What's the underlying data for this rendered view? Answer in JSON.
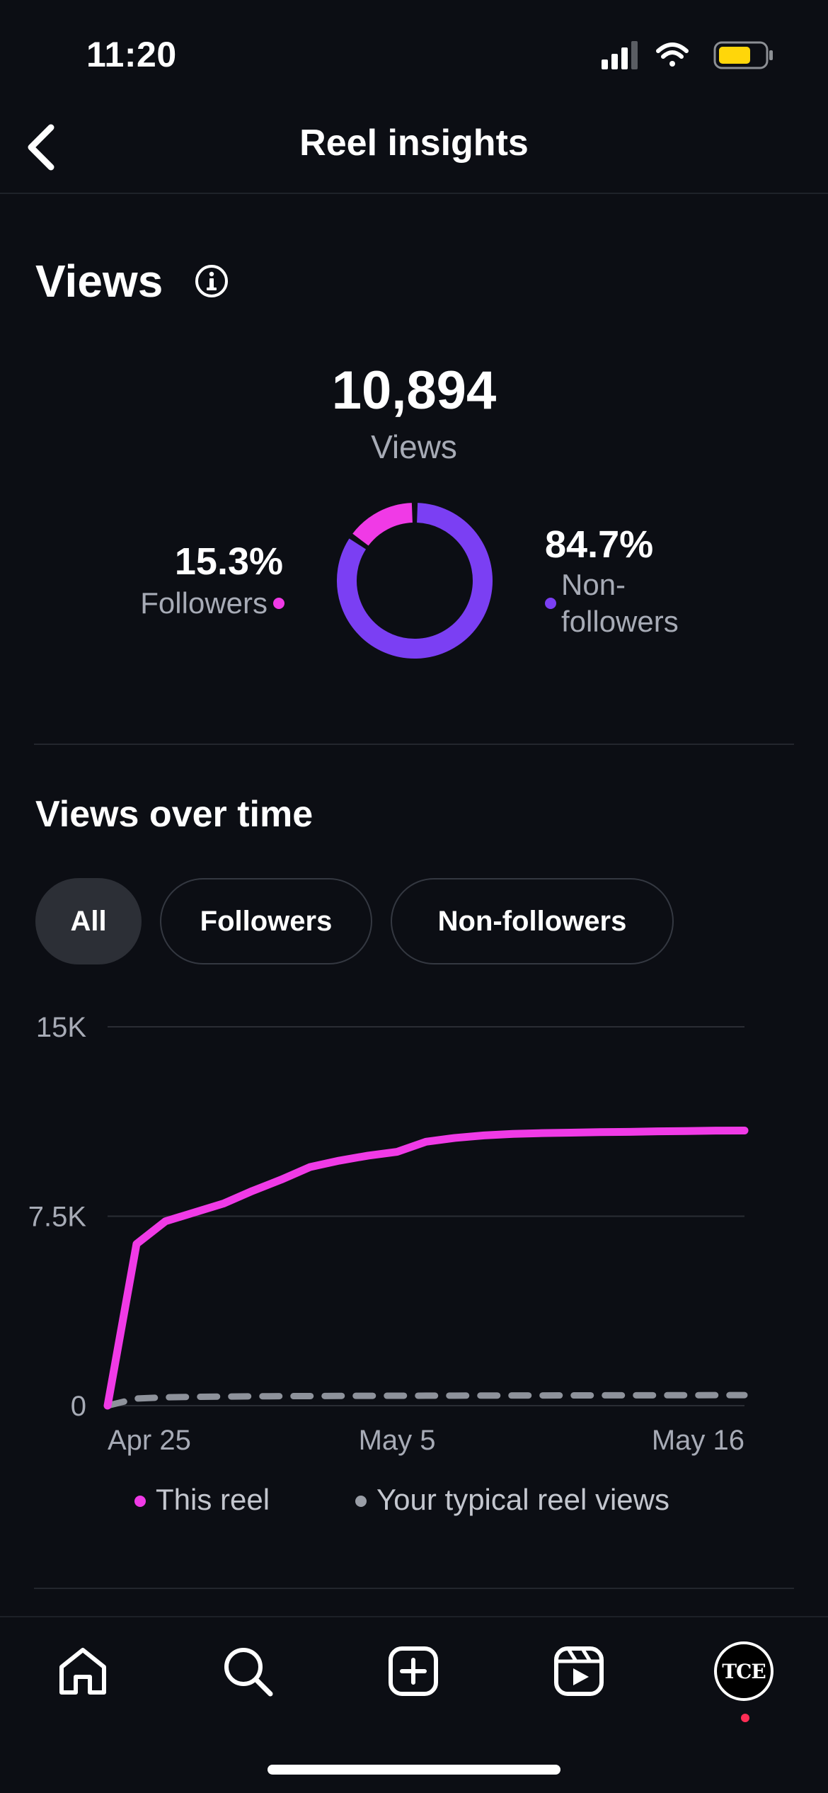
{
  "status_bar": {
    "time": "11:20"
  },
  "header": {
    "title": "Reel insights"
  },
  "views": {
    "title": "Views",
    "count": "10,894",
    "count_label": "Views",
    "followers": {
      "percent": "15.3%",
      "label": "Followers",
      "value": 15.3
    },
    "non_followers": {
      "percent": "84.7%",
      "label": "Non-\nfollowers",
      "value": 84.7
    }
  },
  "views_over_time": {
    "title": "Views over time",
    "filters": [
      "All",
      "Followers",
      "Non-followers"
    ],
    "selected_filter": "All"
  },
  "colors": {
    "followers": "#f03ae6",
    "non_followers": "#7b3ff3",
    "typical": "#8e929b",
    "background": "#0c0e14"
  },
  "chart_data": {
    "type": "line",
    "x_tick_labels": [
      "Apr 25",
      "May 5",
      "May 16"
    ],
    "y_tick_labels": [
      "15K",
      "7.5K",
      "0"
    ],
    "ylim": [
      0,
      15000
    ],
    "x_days": 22,
    "series": [
      {
        "name": "This reel",
        "style": "solid",
        "values": [
          0,
          6400,
          7300,
          7650,
          8000,
          8500,
          8950,
          9450,
          9700,
          9900,
          10050,
          10450,
          10600,
          10700,
          10760,
          10790,
          10810,
          10830,
          10840,
          10860,
          10870,
          10890,
          10894
        ]
      },
      {
        "name": "Your typical reel views",
        "style": "dashed",
        "values": [
          0,
          280,
          330,
          350,
          360,
          370,
          375,
          380,
          385,
          390,
          392,
          395,
          397,
          400,
          402,
          404,
          406,
          408,
          410,
          412,
          414,
          416,
          418
        ]
      }
    ],
    "legend": [
      "This reel",
      "Your typical reel views"
    ]
  },
  "icons": {
    "back": "chevron-left-icon",
    "info": "info-icon",
    "nav": [
      "home-icon",
      "search-icon",
      "create-icon",
      "reels-icon",
      "profile-avatar"
    ]
  },
  "profile": {
    "avatar_text": "TCE"
  }
}
